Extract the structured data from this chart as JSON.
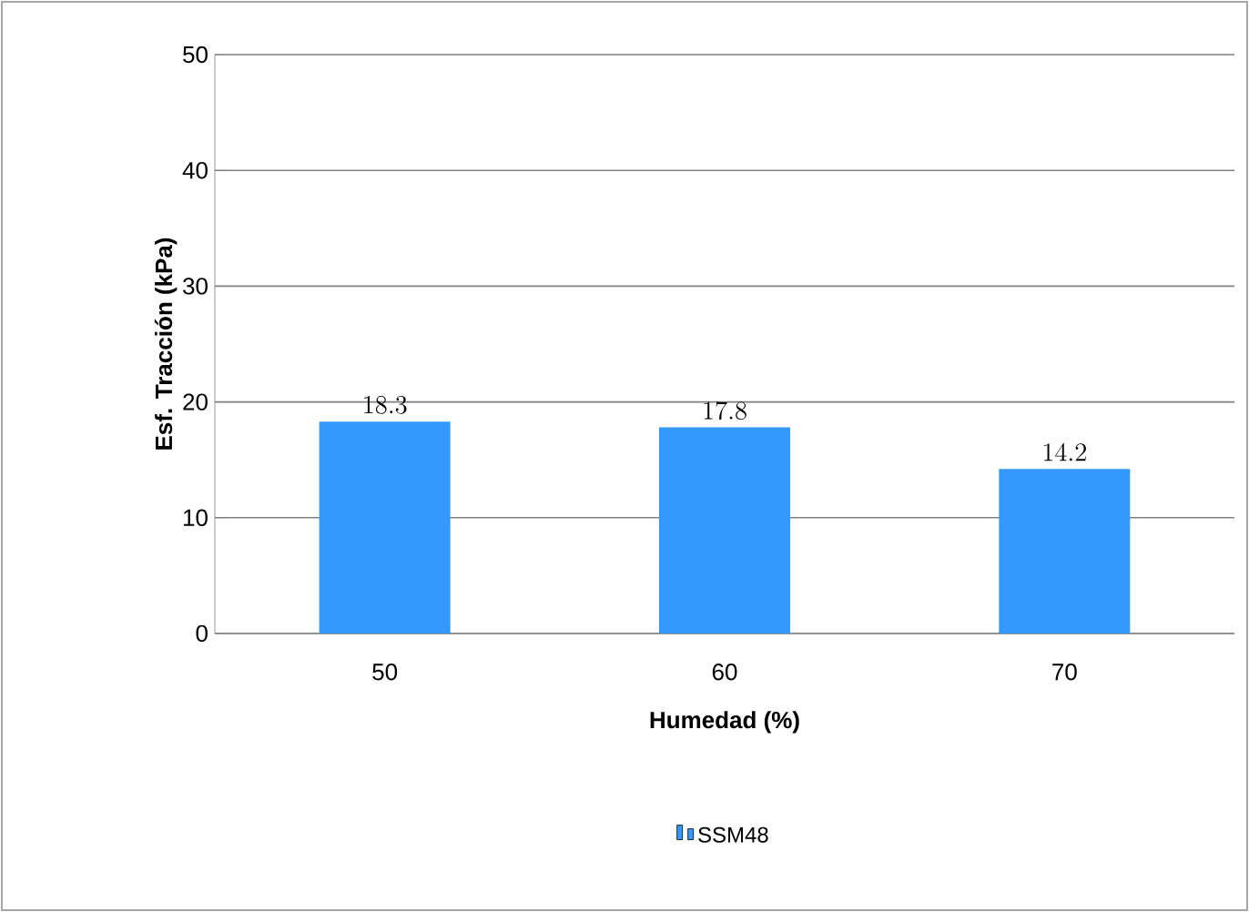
{
  "chart_data": {
    "type": "bar",
    "xlabel": "Humedad (%)",
    "ylabel": "Esf. Tracción (kPa)",
    "categories": [
      "50",
      "60",
      "70"
    ],
    "series": [
      {
        "name": "SSM48",
        "color": "#3399ff",
        "values": [
          18.3,
          17.8,
          14.2
        ]
      }
    ],
    "ylim": [
      0,
      50
    ],
    "yticks": [
      0,
      10,
      20,
      30,
      40,
      50
    ],
    "grid": "y",
    "legend": "bottom",
    "data_labels": true
  }
}
